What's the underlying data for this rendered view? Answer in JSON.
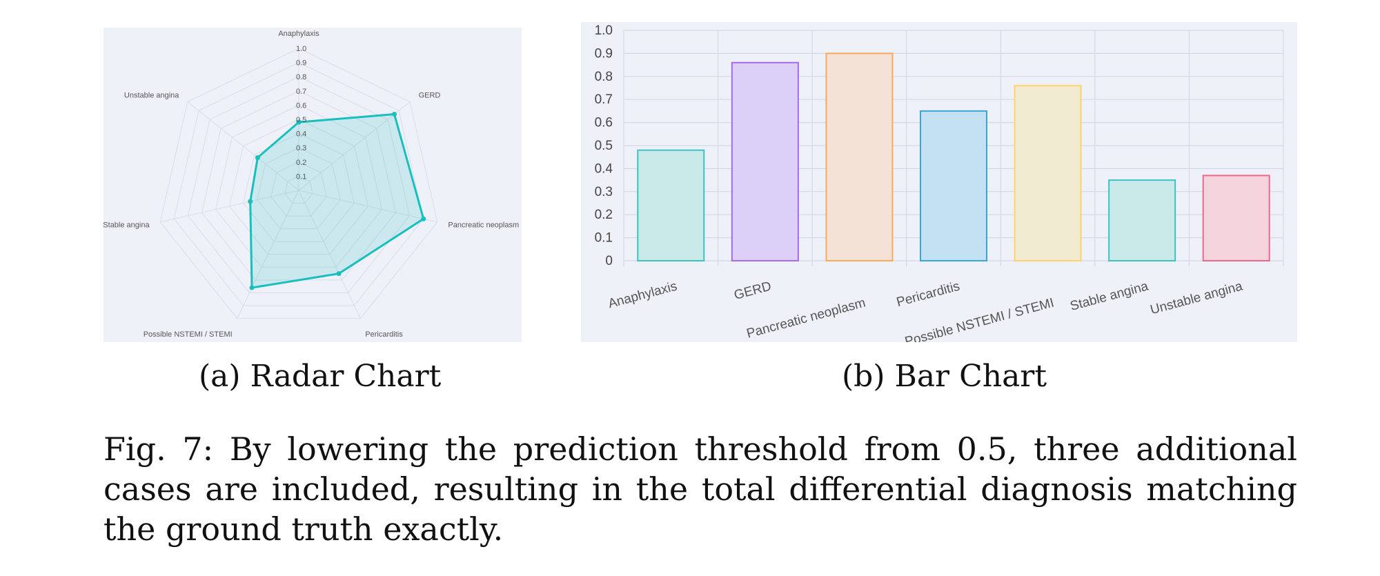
{
  "chart_data": [
    {
      "id": "radar",
      "type": "radar",
      "categories": [
        "Anaphylaxis",
        "GERD",
        "Pancreatic neoplasm",
        "Pericarditis",
        "Possible NSTEMI / STEMI",
        "Stable angina",
        "Unstable angina"
      ],
      "values": [
        0.48,
        0.86,
        0.9,
        0.65,
        0.76,
        0.35,
        0.37
      ],
      "radial_ticks": [
        "0.1",
        "0.2",
        "0.3",
        "0.4",
        "0.5",
        "0.6",
        "0.7",
        "0.8",
        "0.9",
        "1.0"
      ],
      "range": [
        0,
        1
      ],
      "color": "#19bfbf",
      "background": "#eef1f8"
    },
    {
      "id": "bar",
      "type": "bar",
      "categories": [
        "Anaphylaxis",
        "GERD",
        "Pancreatic neoplasm",
        "Pericarditis",
        "Possible NSTEMI / STEMI",
        "Stable angina",
        "Unstable angina"
      ],
      "values": [
        0.48,
        0.86,
        0.9,
        0.65,
        0.76,
        0.35,
        0.37
      ],
      "ylim": [
        0,
        1
      ],
      "y_ticks": [
        "0",
        "0.1",
        "0.2",
        "0.3",
        "0.4",
        "0.5",
        "0.6",
        "0.7",
        "0.8",
        "0.9",
        "1.0"
      ],
      "bar_strokes": [
        "#3cc3c0",
        "#a66be6",
        "#f9a85c",
        "#3aa6d8",
        "#ffd36a",
        "#3cc3c0",
        "#f2668d"
      ],
      "bar_fills": [
        "#c9eae9",
        "#dcd0f6",
        "#f3e2d5",
        "#c4e1f3",
        "#f1ebd2",
        "#c9eae9",
        "#f5d3dd"
      ],
      "background": "#eef1f8"
    }
  ],
  "subcaptions": {
    "radar": "(a) Radar Chart",
    "bar": "(b) Bar Chart"
  },
  "caption": "Fig. 7: By lowering the prediction threshold from 0.5, three additional cases are included, resulting in the total differential diagnosis matching the ground truth exactly."
}
